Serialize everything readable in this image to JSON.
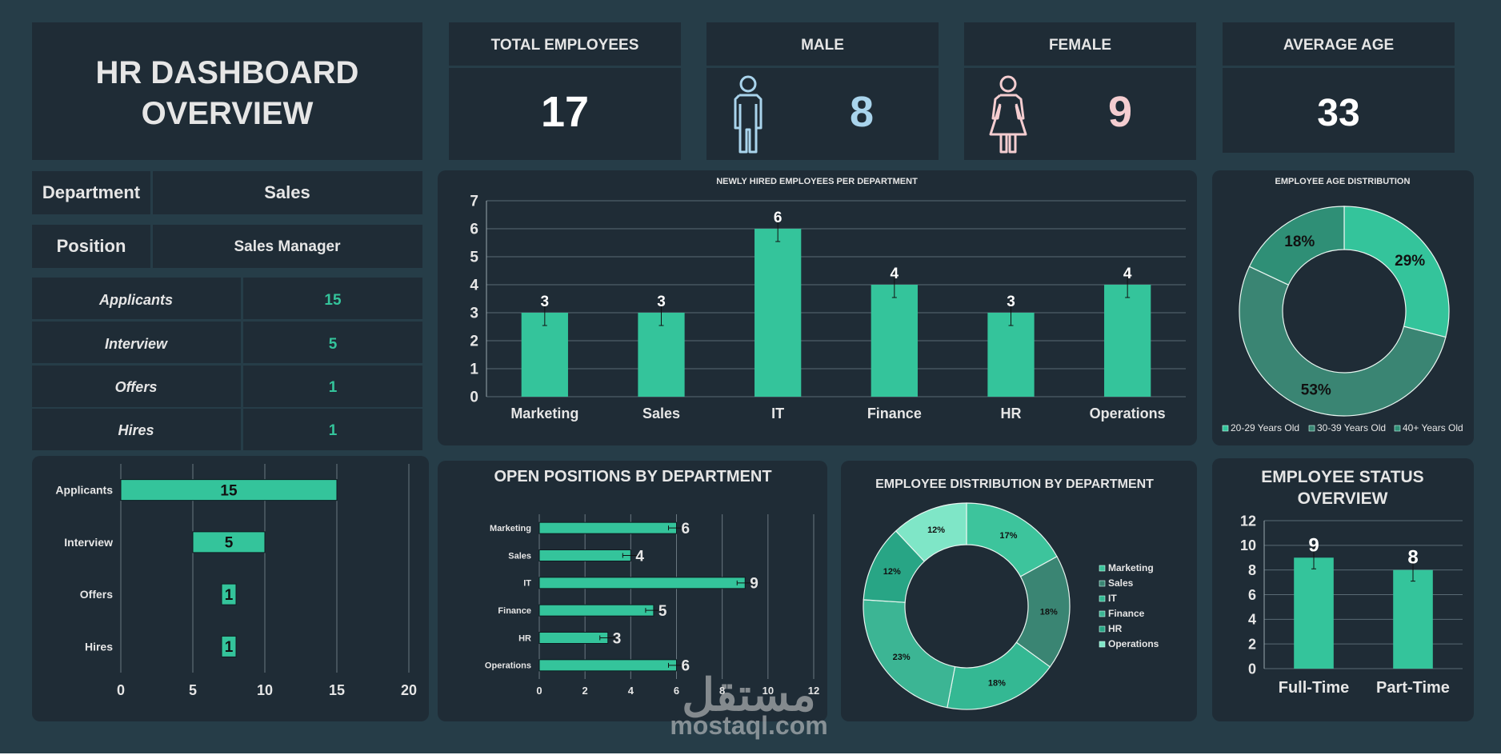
{
  "colors": {
    "background": "#263d48",
    "panel": "#1f2c36",
    "accent": "#34c49b",
    "accent_dark": "#2a8f76",
    "male": "#a9d4ec",
    "female": "#f4cdd0",
    "text_light": "#e6e6e6"
  },
  "header": {
    "title_line1": "HR DASHBOARD",
    "title_line2": "OVERVIEW"
  },
  "kpis": {
    "total_employees_label": "TOTAL EMPLOYEES",
    "total_employees_value": "17",
    "male_label": "MALE",
    "male_value": "8",
    "female_label": "FEMALE",
    "female_value": "9",
    "average_age_label": "AVERAGE AGE",
    "average_age_value": "33"
  },
  "filters": {
    "department_label": "Department",
    "department_value": "Sales",
    "position_label": "Position",
    "position_value": "Sales Manager"
  },
  "pipeline": [
    {
      "label": "Applicants",
      "value": "15"
    },
    {
      "label": "Interview",
      "value": "5"
    },
    {
      "label": "Offers",
      "value": "1"
    },
    {
      "label": "Hires",
      "value": "1"
    }
  ],
  "watermark": {
    "arabic": "مستقل",
    "latin": "mostaql.com"
  },
  "chart_data": [
    {
      "id": "newly-hired",
      "type": "bar",
      "title": "NEWLY HIRED EMPLOYEES PER DEPARTMENT",
      "categories": [
        "Marketing",
        "Sales",
        "IT",
        "Finance",
        "HR",
        "Operations"
      ],
      "values": [
        3,
        3,
        6,
        4,
        3,
        4
      ],
      "ylim": [
        0,
        7
      ],
      "yticks": [
        "0",
        "1",
        "2",
        "3",
        "4",
        "5",
        "6",
        "7"
      ],
      "error_bars": true,
      "grid": true
    },
    {
      "id": "age-distribution",
      "type": "pie",
      "title": "EMPLOYEE AGE DISTRIBUTION",
      "categories": [
        "20-29 Years Old",
        "30-39 Years Old",
        "40+ Years Old"
      ],
      "values": [
        29,
        53,
        18
      ],
      "labels": [
        "29%",
        "53%",
        "18%"
      ],
      "colors": [
        "#34c49b",
        "#3a8573",
        "#2f8f76"
      ],
      "legend": "bottom"
    },
    {
      "id": "pipeline-funnel",
      "type": "bar",
      "orientation": "horizontal",
      "categories": [
        "Applicants",
        "Interview",
        "Offers",
        "Hires"
      ],
      "values": [
        15,
        5,
        1,
        1
      ],
      "xlim": [
        0,
        20
      ],
      "xticks": [
        "0",
        "5",
        "10",
        "15",
        "20"
      ],
      "grid": true
    },
    {
      "id": "open-positions",
      "type": "bar",
      "orientation": "horizontal",
      "title": "OPEN POSITIONS BY DEPARTMENT",
      "categories": [
        "Marketing",
        "Sales",
        "IT",
        "Finance",
        "HR",
        "Operations"
      ],
      "values": [
        6,
        4,
        9,
        5,
        3,
        6
      ],
      "xlim": [
        0,
        12
      ],
      "xticks": [
        "0",
        "2",
        "4",
        "6",
        "8",
        "10",
        "12"
      ],
      "error_bars": true,
      "grid": true
    },
    {
      "id": "department-distribution",
      "type": "pie",
      "title": "EMPLOYEE DISTRIBUTION BY DEPARTMENT",
      "categories": [
        "Marketing",
        "Sales",
        "IT",
        "Finance",
        "HR",
        "Operations"
      ],
      "values": [
        17,
        18,
        18,
        23,
        12,
        12
      ],
      "labels": [
        "17%",
        "18%",
        "18%",
        "23%",
        "12%",
        "12%"
      ],
      "colors": [
        "#3dc49c",
        "#3a8573",
        "#34b893",
        "#3cb594",
        "#28a585",
        "#7fe6c7"
      ],
      "legend": "right"
    },
    {
      "id": "employee-status",
      "type": "bar",
      "title": "EMPLOYEE STATUS OVERVIEW",
      "title_line1": "EMPLOYEE STATUS",
      "title_line2": "OVERVIEW",
      "categories": [
        "Full-Time",
        "Part-Time"
      ],
      "values": [
        9,
        8
      ],
      "ylim": [
        0,
        12
      ],
      "yticks": [
        "0",
        "2",
        "4",
        "6",
        "8",
        "10",
        "12"
      ],
      "error_bars": true,
      "grid": true
    }
  ]
}
